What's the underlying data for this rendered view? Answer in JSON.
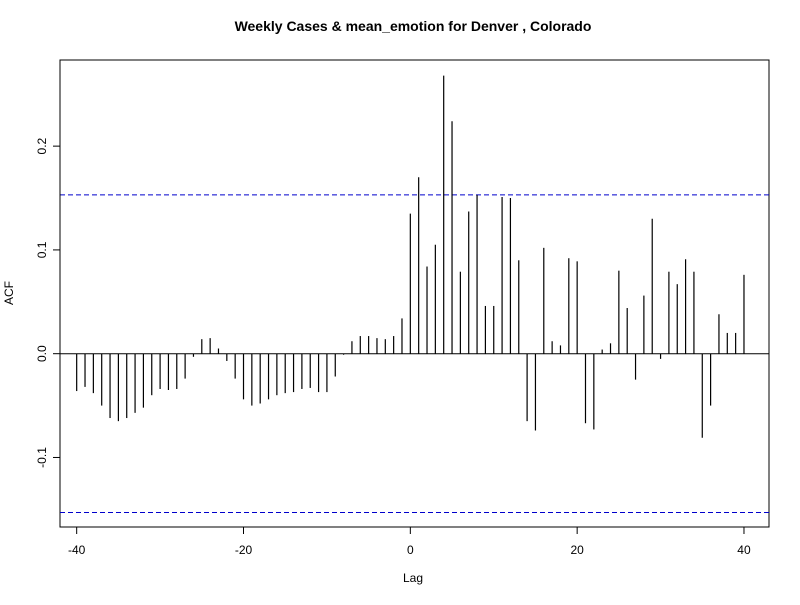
{
  "chart_data": {
    "type": "bar",
    "title": "Weekly Cases & mean_emotion for Denver , Colorado",
    "xlabel": "Lag",
    "ylabel": "ACF",
    "xlim": [
      -42,
      43
    ],
    "ylim": [
      -0.167,
      0.283
    ],
    "x_ticks": [
      -40,
      -20,
      0,
      20,
      40
    ],
    "x_tick_labels": [
      "-40",
      "-20",
      "0",
      "20",
      "40"
    ],
    "y_ticks": [
      -0.1,
      0.0,
      0.1,
      0.2
    ],
    "y_tick_labels": [
      "-0.1",
      "0.0",
      "0.1",
      "0.2"
    ],
    "confidence_bounds": [
      0.153,
      -0.153
    ],
    "zero_line": 0.0,
    "grid": false,
    "legend": "none",
    "series": [
      {
        "x": [
          -40,
          -39,
          -38,
          -37,
          -36,
          -35,
          -34,
          -33,
          -32,
          -31,
          -30,
          -29,
          -28,
          -27,
          -26,
          -25,
          -24,
          -23,
          -22,
          -21,
          -20,
          -19,
          -18,
          -17,
          -16,
          -15,
          -14,
          -13,
          -12,
          -11,
          -10,
          -9,
          -8,
          -7,
          -6,
          -5,
          -4,
          -3,
          -2,
          -1,
          0,
          1,
          2,
          3,
          4,
          5,
          6,
          7,
          8,
          9,
          10,
          11,
          12,
          13,
          14,
          15,
          16,
          17,
          18,
          19,
          20,
          21,
          22,
          23,
          24,
          25,
          26,
          27,
          28,
          29,
          30,
          31,
          32,
          33,
          34,
          35,
          36,
          37,
          38,
          39,
          40
        ],
        "values": [
          -0.036,
          -0.032,
          -0.038,
          -0.05,
          -0.062,
          -0.065,
          -0.062,
          -0.057,
          -0.052,
          -0.04,
          -0.034,
          -0.035,
          -0.034,
          -0.024,
          -0.003,
          0.014,
          0.015,
          0.005,
          -0.007,
          -0.024,
          -0.044,
          -0.05,
          -0.048,
          -0.044,
          -0.04,
          -0.038,
          -0.037,
          -0.034,
          -0.033,
          -0.037,
          -0.037,
          -0.022,
          -0.001,
          0.012,
          0.017,
          0.017,
          0.015,
          0.014,
          0.017,
          0.034,
          0.135,
          0.17,
          0.084,
          0.105,
          0.268,
          0.224,
          0.079,
          0.137,
          0.153,
          0.046,
          0.046,
          0.151,
          0.15,
          0.09,
          -0.065,
          -0.074,
          0.102,
          0.012,
          0.008,
          0.092,
          0.089,
          -0.067,
          -0.073,
          0.004,
          0.01,
          0.08,
          0.044,
          -0.025,
          0.056,
          0.13,
          -0.005,
          0.079,
          0.067,
          0.091,
          0.079,
          -0.081,
          -0.05,
          0.038,
          0.02,
          0.02,
          0.076
        ]
      }
    ],
    "colors": {
      "bars": "#000000",
      "bounds": "#0000cc",
      "axes": "#000000"
    }
  }
}
